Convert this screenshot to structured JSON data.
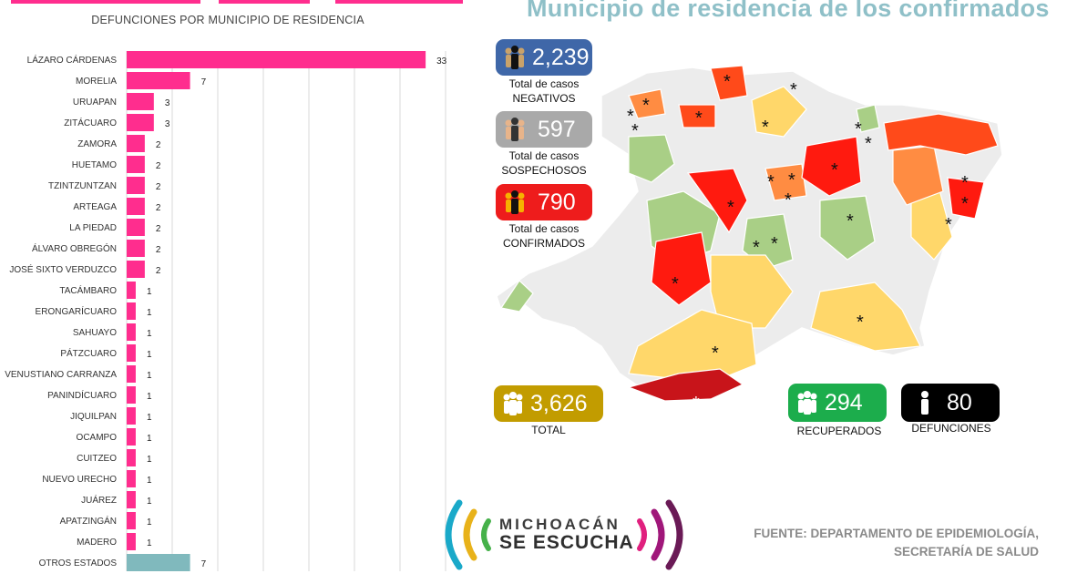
{
  "chart_data": {
    "type": "bar",
    "orientation": "horizontal",
    "title": "DEFUNCIONES POR MUNICIPIO DE RESIDENCIA",
    "categories": [
      "LÁZARO CÁRDENAS",
      "MORELIA",
      "URUAPAN",
      "ZITÁCUARO",
      "ZAMORA",
      "HUETAMO",
      "TZINTZUNTZAN",
      "ARTEAGA",
      "LA PIEDAD",
      "ÁLVARO OBREGÓN",
      "JOSÉ SIXTO VERDUZCO",
      "TACÁMBARO",
      "ERONGARÍCUARO",
      "SAHUAYO",
      "PÁTZCUARO",
      "VENUSTIANO CARRANZA",
      "PANINDÍCUARO",
      "JIQUILPAN",
      "OCAMPO",
      "CUITZEO",
      "NUEVO URECHO",
      "JUÁREZ",
      "APATZINGÁN",
      "MADERO",
      "OTROS ESTADOS"
    ],
    "values": [
      33,
      7,
      3,
      3,
      2,
      2,
      2,
      2,
      2,
      2,
      2,
      1,
      1,
      1,
      1,
      1,
      1,
      1,
      1,
      1,
      1,
      1,
      1,
      1,
      7
    ],
    "xlim": [
      0,
      35
    ],
    "grid": true,
    "colors": {
      "municipio": "#ff2d8e",
      "otros": "#80b9bd"
    }
  },
  "map": {
    "title": "Municipio de residencia de los confirmados",
    "colors": {
      "none": "#ececec",
      "low": "#ffd76a",
      "green": "#a9cf86",
      "mid": "#ff8c42",
      "high": "#ff2b12",
      "top": "#c8141a",
      "border": "#ffffff"
    }
  },
  "stats": {
    "negativos": {
      "value": "2,239",
      "label1": "Total de casos",
      "label2": "NEGATIVOS",
      "color": "#3f67a8"
    },
    "sospechosos": {
      "value": "597",
      "label1": "Total de casos",
      "label2": "SOSPECHOSOS",
      "color": "#a9a9a9"
    },
    "confirmados": {
      "value": "790",
      "label1": "Total de casos",
      "label2": "CONFIRMADOS",
      "color": "#ee1c1c"
    },
    "total": {
      "value": "3,626",
      "label": "TOTAL",
      "color": "#c29c00"
    },
    "recuperados": {
      "value": "294",
      "label": "RECUPERADOS",
      "color": "#1cad4c"
    },
    "defunciones": {
      "value": "80",
      "label": "DEFUNCIONES",
      "color": "#000000"
    }
  },
  "logo": {
    "line1": "MICHOACÁN",
    "line2": "SE ESCUCHA"
  },
  "source": {
    "line1": "FUENTE: DEPARTAMENTO DE EPIDEMIOLOGÍA,",
    "line2": "SECRETARÍA DE SALUD"
  },
  "icons": [
    "people-icon",
    "person-icon",
    "asterisk-marker"
  ]
}
